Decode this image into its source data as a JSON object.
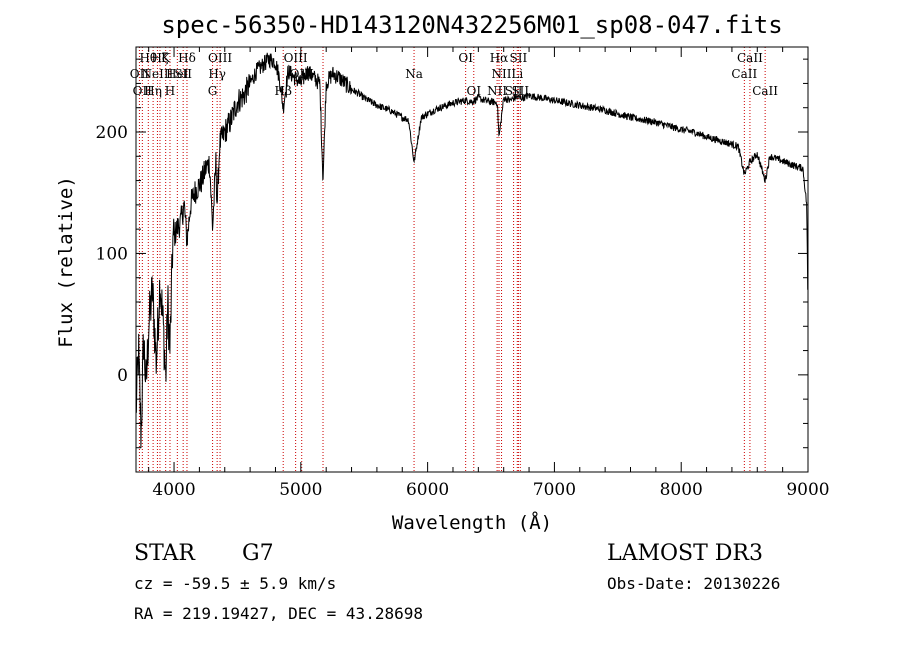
{
  "chart_data": {
    "type": "line",
    "title": "spec-56350-HD143120N432256M01_sp08-047.fits",
    "xlabel": "Wavelength (Å)",
    "ylabel": "Flux (relative)",
    "xlim": [
      3700,
      9000
    ],
    "ylim": [
      -80,
      270
    ],
    "x_ticks": [
      4000,
      5000,
      6000,
      7000,
      8000,
      9000
    ],
    "y_ticks": [
      0,
      100,
      200
    ],
    "grid": false,
    "line_color": "#000000",
    "marker_color": "#cc0000",
    "series": [
      {
        "x": [
          3700,
          3720,
          3740,
          3760,
          3780,
          3800,
          3830,
          3860,
          3890,
          3920,
          3935,
          3950,
          3968,
          3990,
          4020,
          4050,
          4080,
          4102,
          4130,
          4160,
          4190,
          4220,
          4250,
          4280,
          4304,
          4330,
          4340,
          4360,
          4400,
          4450,
          4500,
          4550,
          4600,
          4650,
          4700,
          4750,
          4800,
          4830,
          4861,
          4900,
          4950,
          5000,
          5050,
          5100,
          5150,
          5175,
          5200,
          5250,
          5300,
          5350,
          5400,
          5450,
          5500,
          5550,
          5600,
          5650,
          5700,
          5750,
          5800,
          5850,
          5893,
          5950,
          6000,
          6050,
          6100,
          6150,
          6200,
          6250,
          6300,
          6350,
          6400,
          6450,
          6500,
          6550,
          6563,
          6600,
          6650,
          6700,
          6750,
          6800,
          6900,
          7000,
          7100,
          7200,
          7300,
          7400,
          7500,
          7600,
          7700,
          7800,
          7900,
          8000,
          8100,
          8200,
          8300,
          8400,
          8450,
          8498,
          8542,
          8600,
          8662,
          8700,
          8800,
          8900,
          8960,
          8990,
          9000
        ],
        "y": [
          -30,
          20,
          -50,
          30,
          -10,
          40,
          70,
          10,
          80,
          30,
          -5,
          60,
          20,
          110,
          120,
          125,
          140,
          110,
          140,
          150,
          155,
          160,
          170,
          175,
          120,
          175,
          140,
          190,
          200,
          210,
          225,
          230,
          240,
          250,
          255,
          260,
          258,
          245,
          220,
          250,
          245,
          240,
          250,
          245,
          240,
          160,
          240,
          248,
          245,
          240,
          235,
          232,
          228,
          225,
          222,
          220,
          218,
          215,
          212,
          210,
          175,
          212,
          215,
          218,
          220,
          222,
          224,
          225,
          226,
          225,
          228,
          226,
          225,
          224,
          195,
          228,
          226,
          229,
          228,
          230,
          228,
          226,
          224,
          222,
          220,
          218,
          215,
          212,
          210,
          208,
          205,
          202,
          200,
          196,
          193,
          190,
          188,
          165,
          175,
          182,
          160,
          180,
          176,
          172,
          170,
          140,
          50
        ]
      }
    ],
    "line_markers": [
      {
        "wavelength": 3727,
        "label": "OII",
        "row": 2
      },
      {
        "wavelength": 3750,
        "label": "OII",
        "row": 3
      },
      {
        "wavelength": 3797,
        "label": "Hθ",
        "row": 1
      },
      {
        "wavelength": 3835,
        "label": "Hη",
        "row": 3
      },
      {
        "wavelength": 3869,
        "label": "NeIII",
        "row": 2
      },
      {
        "wavelength": 3889,
        "label": "Hζ",
        "row": 1
      },
      {
        "wavelength": 3934,
        "label": "K",
        "row": 1
      },
      {
        "wavelength": 3968,
        "label": "H",
        "row": 3
      },
      {
        "wavelength": 4026,
        "label": "HeI",
        "row": 2
      },
      {
        "wavelength": 4072,
        "label": "SII",
        "row": 2
      },
      {
        "wavelength": 4102,
        "label": "Hδ",
        "row": 1
      },
      {
        "wavelength": 4304,
        "label": "G",
        "row": 3
      },
      {
        "wavelength": 4340,
        "label": "Hγ",
        "row": 2
      },
      {
        "wavelength": 4363,
        "label": "OIII",
        "row": 1
      },
      {
        "wavelength": 4861,
        "label": "Hβ",
        "row": 3
      },
      {
        "wavelength": 4959,
        "label": "OIII",
        "row": 1
      },
      {
        "wavelength": 5007,
        "label": "OIII",
        "row": 2
      },
      {
        "wavelength": 5175,
        "label": "",
        "row": 0
      },
      {
        "wavelength": 5893,
        "label": "Na",
        "row": 2
      },
      {
        "wavelength": 6300,
        "label": "OI",
        "row": 1
      },
      {
        "wavelength": 6364,
        "label": "OI",
        "row": 3
      },
      {
        "wavelength": 6548,
        "label": "NII",
        "row": 3
      },
      {
        "wavelength": 6563,
        "label": "Hα",
        "row": 1
      },
      {
        "wavelength": 6583,
        "label": "NII",
        "row": 2
      },
      {
        "wavelength": 6678,
        "label": "SII",
        "row": 3
      },
      {
        "wavelength": 6707,
        "label": "Li",
        "row": 2
      },
      {
        "wavelength": 6716,
        "label": "SII",
        "row": 1
      },
      {
        "wavelength": 6731,
        "label": "SII",
        "row": 3
      },
      {
        "wavelength": 8498,
        "label": "CaII",
        "row": 2
      },
      {
        "wavelength": 8542,
        "label": "CaII",
        "row": 1
      },
      {
        "wavelength": 8662,
        "label": "CaII",
        "row": 3
      }
    ]
  },
  "info": {
    "object_class": "STAR",
    "subclass": "G7",
    "survey": "LAMOST DR3",
    "redshift": "cz = -59.5 ± 5.9 km/s",
    "obs_date": "Obs-Date: 20130226",
    "coords": "RA = 219.19427, DEC =  43.28698"
  }
}
